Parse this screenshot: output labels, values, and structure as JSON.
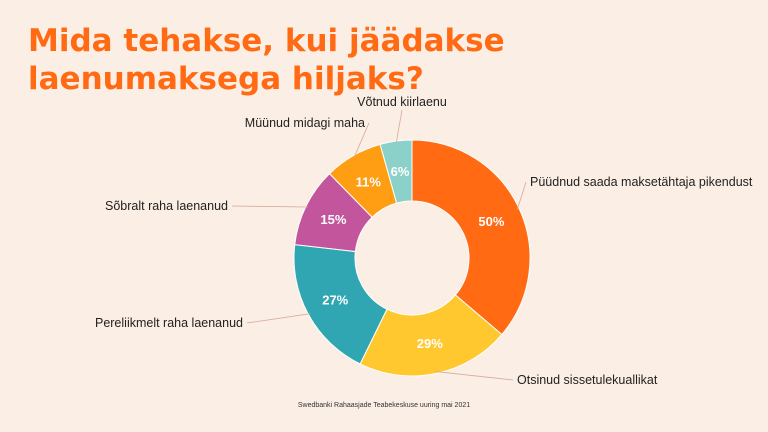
{
  "title": "Mida tehakse, kui jäädakse laenumaksega hiljaks?",
  "source": "Swedbanki Rahaasjade Teabekeskuse uuring mai 2021",
  "chart_data": {
    "type": "pie",
    "donut": true,
    "slices": [
      {
        "label": "Püüdnud saada maksetähtaja pikendust",
        "value": 50,
        "display": "50%",
        "color": "#ff6a13"
      },
      {
        "label": "Otsinud sissetulekuallikat",
        "value": 29,
        "display": "29%",
        "color": "#ffc82e"
      },
      {
        "label": "Pereliikmelt raha laenanud",
        "value": 27,
        "display": "27%",
        "color": "#31a6b3"
      },
      {
        "label": "Sõbralt raha laenanud",
        "value": 15,
        "display": "15%",
        "color": "#c3559c"
      },
      {
        "label": "Müünud midagi maha",
        "value": 11,
        "display": "11%",
        "color": "#ff9e12"
      },
      {
        "label": "Võtnud kiirlaenu",
        "value": 6,
        "display": "6%",
        "color": "#8cd1c9"
      }
    ]
  }
}
